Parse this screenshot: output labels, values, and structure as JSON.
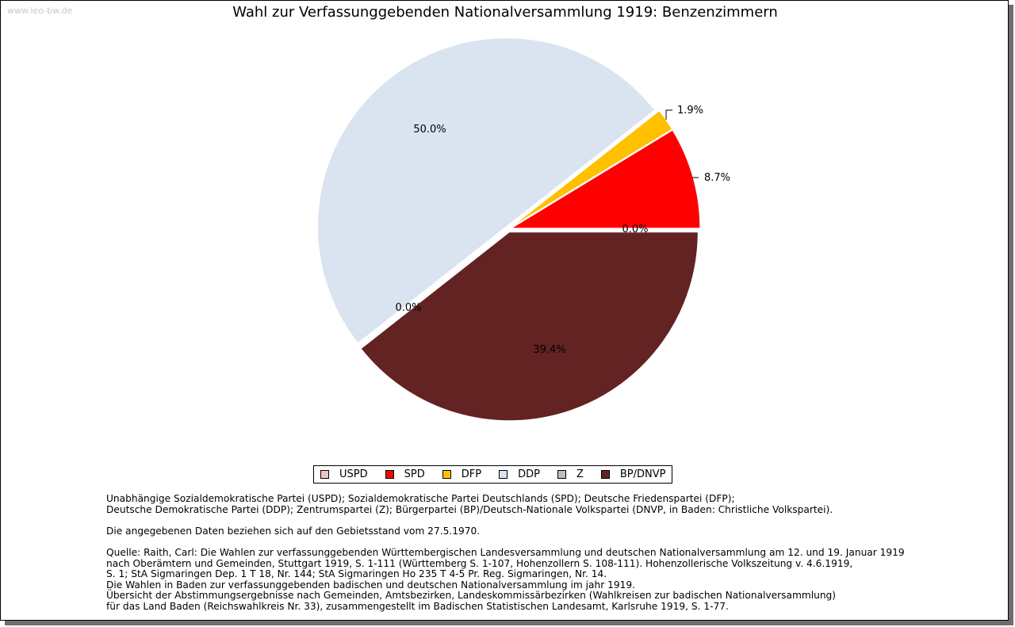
{
  "watermark": "www.leo-bw.de",
  "chart_data": {
    "type": "pie",
    "title": "Wahl zur Verfassunggebenden Nationalversammlung 1919: Benzenzimmern",
    "slices": [
      {
        "name": "USPD",
        "value": 0.0,
        "label": "0.0%",
        "color": "#f2c4c4"
      },
      {
        "name": "SPD",
        "value": 8.7,
        "label": "8.7%",
        "color": "#ff0000"
      },
      {
        "name": "DFP",
        "value": 1.9,
        "label": "1.9%",
        "color": "#ffc000"
      },
      {
        "name": "DDP",
        "value": 50.0,
        "label": "50.0%",
        "color": "#dae3f0"
      },
      {
        "name": "Z",
        "value": 0.0,
        "label": "0.0%",
        "color": "#bfbfbf"
      },
      {
        "name": "BP/DNVP",
        "value": 39.4,
        "label": "39.4%",
        "color": "#632323"
      }
    ],
    "legend_position": "bottom"
  },
  "notes": {
    "parties": [
      "Unabhängige Sozialdemokratische Partei (USPD); Sozialdemokratische Partei Deutschlands (SPD); Deutsche Friedenspartei (DFP);",
      "Deutsche Demokratische Partei (DDP); Zentrumspartei (Z); Bürgerpartei (BP)/Deutsch-Nationale Volkspartei (DNVP, in Baden: Christliche Volkspartei)."
    ],
    "territory": "Die angegebenen Daten beziehen sich auf den Gebietsstand vom 27.5.1970.",
    "source": [
      "Quelle: Raith, Carl: Die Wahlen zur verfassunggebenden Württembergischen Landesversammlung und deutschen Nationalversammlung am 12. und 19. Januar 1919",
      "nach Oberämtern und Gemeinden, Stuttgart 1919, S. 1-111 (Württemberg S. 1-107, Hohenzollern S. 108-111). Hohenzollerische Volkszeitung v. 4.6.1919,",
      "S. 1; StA Sigmaringen Dep. 1 T 18, Nr. 144; StA Sigmaringen Ho 235 T 4-5 Pr. Reg. Sigmaringen, Nr. 14.",
      "Die Wahlen in Baden zur verfassunggebenden badischen und deutschen Nationalversammlung im jahr 1919.",
      "Übersicht der Abstimmungsergebnisse nach Gemeinden, Amtsbezirken, Landeskommissärbezirken (Wahlkreisen zur badischen Nationalversammlung)",
      "für das Land Baden (Reichswahlkreis Nr. 33), zusammengestellt im Badischen Statistischen Landesamt, Karlsruhe 1919, S. 1-77."
    ]
  }
}
